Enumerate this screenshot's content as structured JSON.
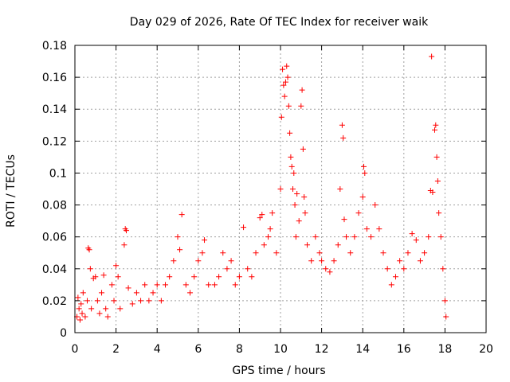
{
  "chart_data": {
    "type": "scatter",
    "title": "Day 029 of 2026, Rate Of TEC Index for receiver waik",
    "xlabel": "GPS time / hours",
    "ylabel": "ROTI / TECUs",
    "xlim": [
      0,
      20
    ],
    "ylim": [
      0,
      0.18
    ],
    "xticks": [
      0,
      2,
      4,
      6,
      8,
      10,
      12,
      14,
      16,
      18,
      20
    ],
    "yticks": [
      0,
      0.02,
      0.04,
      0.06,
      0.08,
      0.1,
      0.12,
      0.14,
      0.16,
      0.18
    ],
    "xtick_labels": [
      "0",
      "2",
      "4",
      "6",
      "8",
      "10",
      "12",
      "14",
      "16",
      "18",
      "20"
    ],
    "ytick_labels": [
      "0",
      "0.02",
      "0.04",
      "0.06",
      "0.08",
      "0.1",
      "0.12",
      "0.14",
      "0.16",
      "0.18"
    ],
    "grid": true,
    "marker": "+",
    "color": "#ff0000",
    "series": [
      {
        "name": "ROTI",
        "points": [
          [
            0.1,
            0.01
          ],
          [
            0.15,
            0.022
          ],
          [
            0.2,
            0.015
          ],
          [
            0.25,
            0.008
          ],
          [
            0.3,
            0.018
          ],
          [
            0.35,
            0.012
          ],
          [
            0.4,
            0.025
          ],
          [
            0.5,
            0.01
          ],
          [
            0.6,
            0.02
          ],
          [
            0.65,
            0.053
          ],
          [
            0.7,
            0.052
          ],
          [
            0.75,
            0.04
          ],
          [
            0.8,
            0.015
          ],
          [
            0.9,
            0.034
          ],
          [
            1.0,
            0.035
          ],
          [
            1.1,
            0.02
          ],
          [
            1.2,
            0.012
          ],
          [
            1.3,
            0.025
          ],
          [
            1.4,
            0.036
          ],
          [
            1.5,
            0.015
          ],
          [
            1.6,
            0.01
          ],
          [
            1.8,
            0.03
          ],
          [
            1.9,
            0.02
          ],
          [
            2.0,
            0.042
          ],
          [
            2.1,
            0.035
          ],
          [
            2.2,
            0.015
          ],
          [
            2.4,
            0.055
          ],
          [
            2.45,
            0.065
          ],
          [
            2.5,
            0.064
          ],
          [
            2.6,
            0.028
          ],
          [
            2.8,
            0.018
          ],
          [
            3.0,
            0.025
          ],
          [
            3.2,
            0.02
          ],
          [
            3.4,
            0.03
          ],
          [
            3.6,
            0.02
          ],
          [
            3.8,
            0.025
          ],
          [
            4.0,
            0.03
          ],
          [
            4.2,
            0.02
          ],
          [
            4.4,
            0.03
          ],
          [
            4.6,
            0.035
          ],
          [
            4.8,
            0.045
          ],
          [
            5.0,
            0.06
          ],
          [
            5.1,
            0.052
          ],
          [
            5.2,
            0.074
          ],
          [
            5.4,
            0.03
          ],
          [
            5.6,
            0.025
          ],
          [
            5.8,
            0.035
          ],
          [
            6.0,
            0.045
          ],
          [
            6.2,
            0.05
          ],
          [
            6.3,
            0.058
          ],
          [
            6.5,
            0.03
          ],
          [
            6.8,
            0.03
          ],
          [
            7.0,
            0.035
          ],
          [
            7.2,
            0.05
          ],
          [
            7.4,
            0.04
          ],
          [
            7.6,
            0.045
          ],
          [
            7.8,
            0.03
          ],
          [
            8.0,
            0.035
          ],
          [
            8.2,
            0.066
          ],
          [
            8.4,
            0.04
          ],
          [
            8.6,
            0.035
          ],
          [
            8.8,
            0.05
          ],
          [
            9.0,
            0.072
          ],
          [
            9.1,
            0.074
          ],
          [
            9.2,
            0.055
          ],
          [
            9.4,
            0.06
          ],
          [
            9.5,
            0.065
          ],
          [
            9.6,
            0.075
          ],
          [
            9.8,
            0.05
          ],
          [
            10.0,
            0.09
          ],
          [
            10.05,
            0.135
          ],
          [
            10.1,
            0.165
          ],
          [
            10.15,
            0.155
          ],
          [
            10.2,
            0.148
          ],
          [
            10.25,
            0.157
          ],
          [
            10.3,
            0.167
          ],
          [
            10.35,
            0.16
          ],
          [
            10.4,
            0.142
          ],
          [
            10.45,
            0.125
          ],
          [
            10.5,
            0.11
          ],
          [
            10.55,
            0.104
          ],
          [
            10.6,
            0.09
          ],
          [
            10.65,
            0.1
          ],
          [
            10.7,
            0.08
          ],
          [
            10.75,
            0.06
          ],
          [
            10.8,
            0.087
          ],
          [
            10.9,
            0.07
          ],
          [
            11.0,
            0.142
          ],
          [
            11.05,
            0.152
          ],
          [
            11.1,
            0.115
          ],
          [
            11.15,
            0.085
          ],
          [
            11.2,
            0.075
          ],
          [
            11.3,
            0.055
          ],
          [
            11.5,
            0.045
          ],
          [
            11.7,
            0.06
          ],
          [
            11.9,
            0.05
          ],
          [
            12.0,
            0.045
          ],
          [
            12.2,
            0.04
          ],
          [
            12.4,
            0.038
          ],
          [
            12.6,
            0.045
          ],
          [
            12.8,
            0.055
          ],
          [
            12.9,
            0.09
          ],
          [
            13.0,
            0.13
          ],
          [
            13.05,
            0.122
          ],
          [
            13.1,
            0.071
          ],
          [
            13.2,
            0.06
          ],
          [
            13.4,
            0.05
          ],
          [
            13.6,
            0.06
          ],
          [
            13.8,
            0.075
          ],
          [
            14.0,
            0.085
          ],
          [
            14.05,
            0.104
          ],
          [
            14.1,
            0.1
          ],
          [
            14.2,
            0.065
          ],
          [
            14.4,
            0.06
          ],
          [
            14.6,
            0.08
          ],
          [
            14.8,
            0.065
          ],
          [
            15.0,
            0.05
          ],
          [
            15.2,
            0.04
          ],
          [
            15.4,
            0.03
          ],
          [
            15.6,
            0.035
          ],
          [
            15.8,
            0.045
          ],
          [
            16.0,
            0.04
          ],
          [
            16.2,
            0.05
          ],
          [
            16.4,
            0.062
          ],
          [
            16.6,
            0.058
          ],
          [
            16.8,
            0.045
          ],
          [
            17.0,
            0.05
          ],
          [
            17.2,
            0.06
          ],
          [
            17.3,
            0.089
          ],
          [
            17.35,
            0.173
          ],
          [
            17.4,
            0.088
          ],
          [
            17.5,
            0.127
          ],
          [
            17.55,
            0.13
          ],
          [
            17.6,
            0.11
          ],
          [
            17.65,
            0.095
          ],
          [
            17.7,
            0.075
          ],
          [
            17.8,
            0.06
          ],
          [
            17.9,
            0.04
          ],
          [
            18.0,
            0.02
          ],
          [
            18.05,
            0.01
          ]
        ]
      }
    ]
  }
}
